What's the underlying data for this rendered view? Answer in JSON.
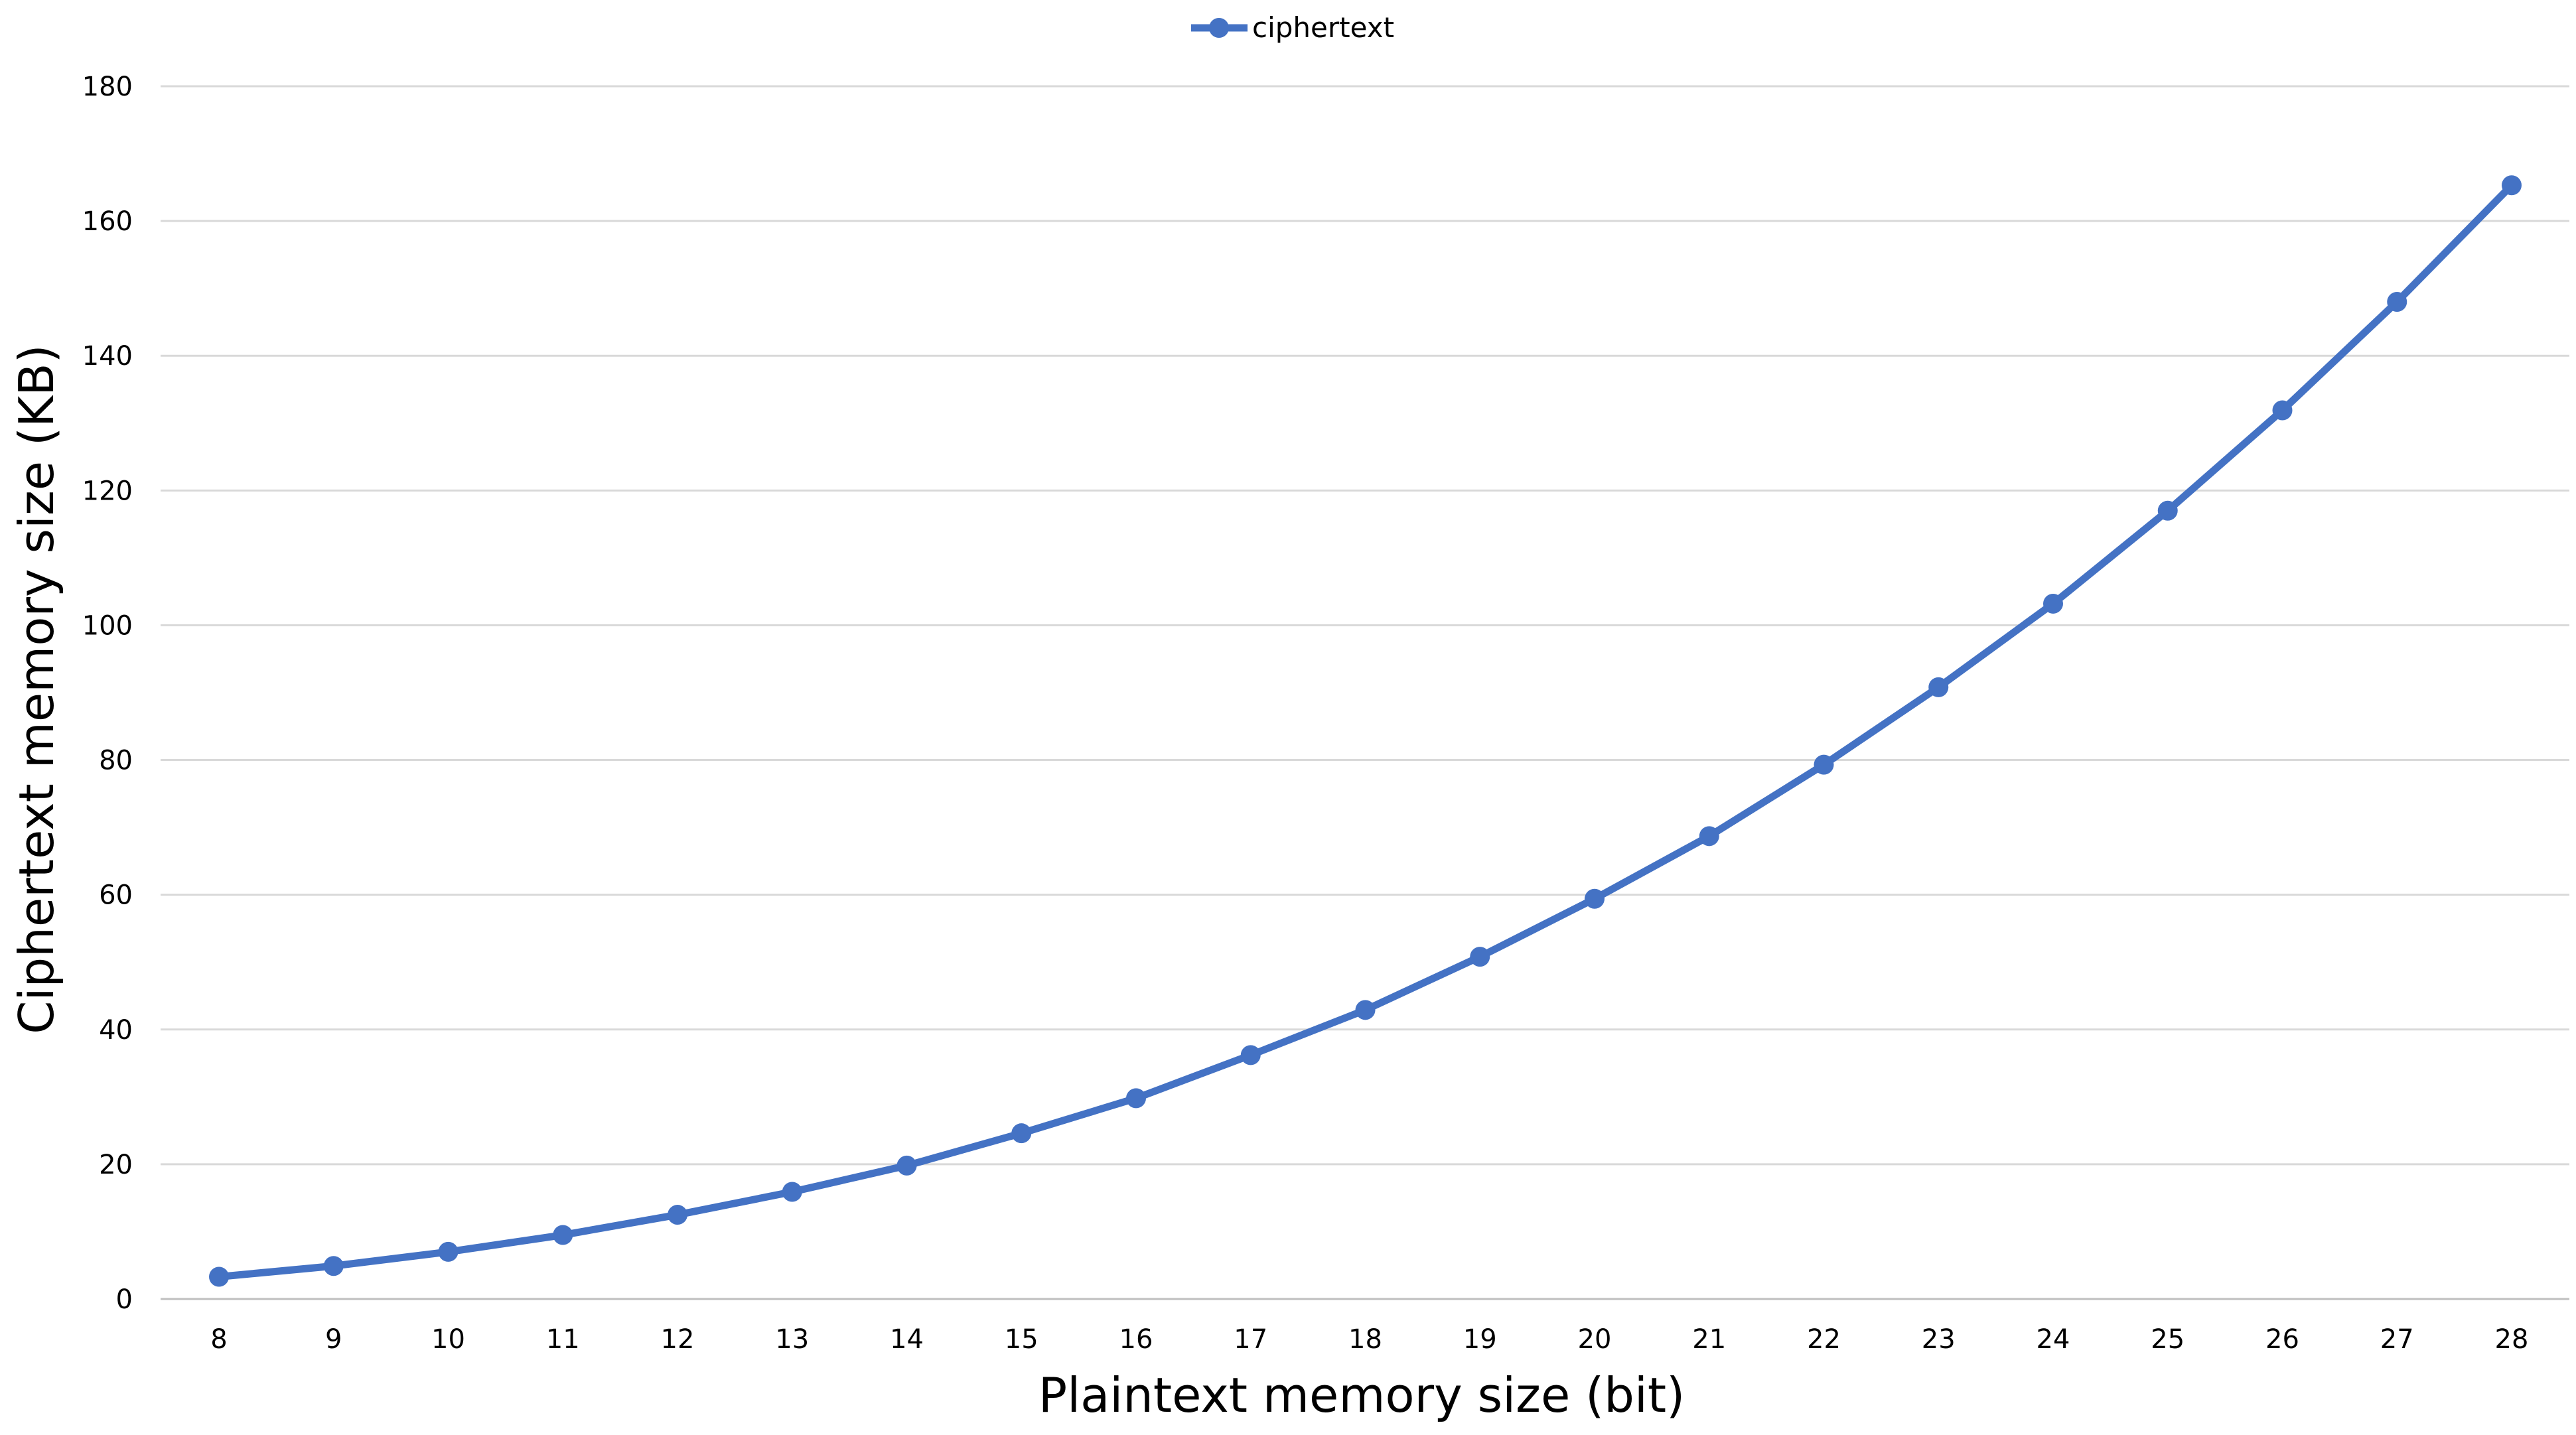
{
  "chart_data": {
    "type": "line",
    "title": "",
    "xlabel": "Plaintext memory size (bit)",
    "ylabel": "Ciphertext memory size (KB)",
    "x": [
      8,
      9,
      10,
      11,
      12,
      13,
      14,
      15,
      16,
      17,
      18,
      19,
      20,
      21,
      22,
      23,
      24,
      25,
      26,
      27,
      28
    ],
    "x_tick_labels": [
      "8",
      "9",
      "10",
      "11",
      "12",
      "13",
      "14",
      "15",
      "16",
      "17",
      "18",
      "19",
      "20",
      "21",
      "22",
      "23",
      "24",
      "25",
      "26",
      "27",
      "28"
    ],
    "ylim": [
      0,
      180
    ],
    "y_ticks": [
      0,
      20,
      40,
      60,
      80,
      100,
      120,
      140,
      160,
      180
    ],
    "y_tick_labels": [
      "0",
      "20",
      "40",
      "60",
      "80",
      "100",
      "120",
      "140",
      "160",
      "180"
    ],
    "grid": "horizontal",
    "legend_position": "top-center",
    "series": [
      {
        "name": "ciphertext",
        "color": "#4472C4",
        "marker": "circle",
        "values": [
          3.3,
          4.9,
          7.0,
          9.5,
          12.5,
          15.9,
          19.8,
          24.6,
          29.8,
          36.2,
          42.9,
          50.8,
          59.4,
          68.7,
          79.3,
          90.8,
          103.2,
          117.0,
          131.9,
          148.0,
          165.3
        ]
      }
    ],
    "gridline_color": "#d9d9d9"
  }
}
